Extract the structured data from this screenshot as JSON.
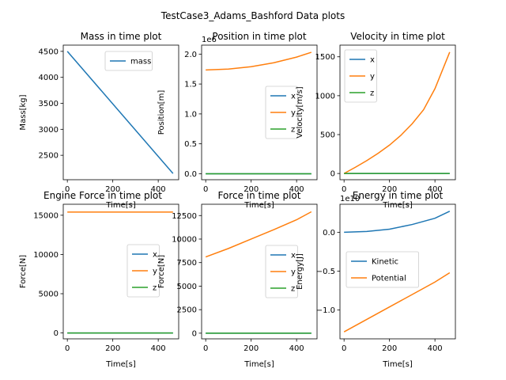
{
  "suptitle": "TestCase3_Adams_Bashford Data plots",
  "colors": {
    "blue": "#1f77b4",
    "orange": "#ff7f0e",
    "green": "#2ca02c"
  },
  "chart_data": [
    {
      "type": "line",
      "title": "Mass in time plot",
      "xlabel": "Time[s]",
      "ylabel": "Mass[kg]",
      "xlim": [
        -18,
        490
      ],
      "ylim": [
        2030,
        4620
      ],
      "xticks": [
        0,
        200,
        400
      ],
      "xtick_labels": [
        "0",
        "200",
        "400"
      ],
      "yticks": [
        2500,
        3000,
        3500,
        4000,
        4500
      ],
      "ytick_labels": [
        "2500",
        "3000",
        "3500",
        "4000",
        "4500"
      ],
      "legend": "upper right",
      "series": [
        {
          "name": "mass",
          "color": "#1f77b4",
          "x": [
            0,
            465
          ],
          "y": [
            4500,
            2150
          ]
        }
      ]
    },
    {
      "type": "line",
      "title": "Position in time plot",
      "xlabel": "Time[s]",
      "ylabel": "Position[m]",
      "offset_text": "1e6",
      "xlim": [
        -18,
        490
      ],
      "ylim": [
        -0.1,
        2.15
      ],
      "xticks": [
        0,
        200,
        400
      ],
      "xtick_labels": [
        "0",
        "200",
        "400"
      ],
      "yticks": [
        0.0,
        0.5,
        1.0,
        1.5,
        2.0
      ],
      "ytick_labels": [
        "0.0",
        "0.5",
        "1.0",
        "1.5",
        "2.0"
      ],
      "legend": "center right",
      "series": [
        {
          "name": "x",
          "color": "#1f77b4",
          "x": [
            0,
            465
          ],
          "y": [
            0,
            0
          ]
        },
        {
          "name": "y",
          "color": "#ff7f0e",
          "x": [
            0,
            100,
            200,
            300,
            400,
            465
          ],
          "y": [
            1.735,
            1.75,
            1.79,
            1.855,
            1.95,
            2.03
          ]
        },
        {
          "name": "z",
          "color": "#2ca02c",
          "x": [
            0,
            465
          ],
          "y": [
            0,
            0
          ]
        }
      ]
    },
    {
      "type": "line",
      "title": "Velocity in time plot",
      "xlabel": "Time[s]",
      "ylabel": "Velocity[m/s]",
      "xlim": [
        -18,
        490
      ],
      "ylim": [
        -80,
        1650
      ],
      "xticks": [
        0,
        200,
        400
      ],
      "xtick_labels": [
        "0",
        "200",
        "400"
      ],
      "yticks": [
        0,
        500,
        1000,
        1500
      ],
      "ytick_labels": [
        "0",
        "500",
        "1000",
        "1500"
      ],
      "legend": "upper left",
      "series": [
        {
          "name": "x",
          "color": "#1f77b4",
          "x": [
            0,
            465
          ],
          "y": [
            0,
            0
          ]
        },
        {
          "name": "y",
          "color": "#ff7f0e",
          "x": [
            0,
            50,
            100,
            150,
            200,
            250,
            300,
            350,
            400,
            465
          ],
          "y": [
            0,
            80,
            165,
            260,
            365,
            490,
            640,
            820,
            1090,
            1560
          ]
        },
        {
          "name": "z",
          "color": "#2ca02c",
          "x": [
            0,
            465
          ],
          "y": [
            0,
            0
          ]
        }
      ]
    },
    {
      "type": "line",
      "title": "Engine Force in time plot",
      "xlabel": "Time[s]",
      "ylabel": "Force[N]",
      "xlim": [
        -18,
        490
      ],
      "ylim": [
        -750,
        16400
      ],
      "xticks": [
        0,
        200,
        400
      ],
      "xtick_labels": [
        "0",
        "200",
        "400"
      ],
      "yticks": [
        0,
        5000,
        10000,
        15000
      ],
      "ytick_labels": [
        "0",
        "5000",
        "10000",
        "15000"
      ],
      "legend": "center right",
      "series": [
        {
          "name": "x",
          "color": "#1f77b4",
          "x": [
            0,
            465
          ],
          "y": [
            0,
            0
          ]
        },
        {
          "name": "y",
          "color": "#ff7f0e",
          "x": [
            0,
            465
          ],
          "y": [
            15400,
            15400
          ]
        },
        {
          "name": "z",
          "color": "#2ca02c",
          "x": [
            0,
            465
          ],
          "y": [
            0,
            0
          ]
        }
      ]
    },
    {
      "type": "line",
      "title": "Force in time plot",
      "xlabel": "Time[s]",
      "ylabel": "Force[N]",
      "xlim": [
        -18,
        490
      ],
      "ylim": [
        -600,
        13700
      ],
      "xticks": [
        0,
        200,
        400
      ],
      "xtick_labels": [
        "0",
        "200",
        "400"
      ],
      "yticks": [
        0,
        2500,
        5000,
        7500,
        10000,
        12500
      ],
      "ytick_labels": [
        "0",
        "2500",
        "5000",
        "7500",
        "10000",
        "12500"
      ],
      "legend": "center right",
      "series": [
        {
          "name": "x",
          "color": "#1f77b4",
          "x": [
            0,
            465
          ],
          "y": [
            0,
            0
          ]
        },
        {
          "name": "y",
          "color": "#ff7f0e",
          "x": [
            0,
            100,
            200,
            300,
            400,
            465
          ],
          "y": [
            8100,
            9000,
            10000,
            11000,
            12050,
            12900
          ]
        },
        {
          "name": "z",
          "color": "#2ca02c",
          "x": [
            0,
            465
          ],
          "y": [
            0,
            0
          ]
        }
      ]
    },
    {
      "type": "line",
      "title": "Energy in time plot",
      "xlabel": "Time[s]",
      "ylabel": "Energy[J]",
      "offset_text": "1e10",
      "xlim": [
        -18,
        490
      ],
      "ylim": [
        -1.37,
        0.36
      ],
      "xticks": [
        0,
        200,
        400
      ],
      "xtick_labels": [
        "0",
        "200",
        "400"
      ],
      "yticks": [
        -1.0,
        -0.5,
        0.0
      ],
      "ytick_labels": [
        "−1.0",
        "−0.5",
        "0.0"
      ],
      "legend": "center left",
      "series": [
        {
          "name": "Kinetic",
          "color": "#1f77b4",
          "x": [
            0,
            100,
            200,
            300,
            400,
            465
          ],
          "y": [
            0.0,
            0.01,
            0.04,
            0.1,
            0.18,
            0.27
          ]
        },
        {
          "name": "Potential",
          "color": "#ff7f0e",
          "x": [
            0,
            100,
            200,
            300,
            400,
            465
          ],
          "y": [
            -1.28,
            -1.12,
            -0.96,
            -0.8,
            -0.64,
            -0.52
          ]
        }
      ]
    }
  ]
}
